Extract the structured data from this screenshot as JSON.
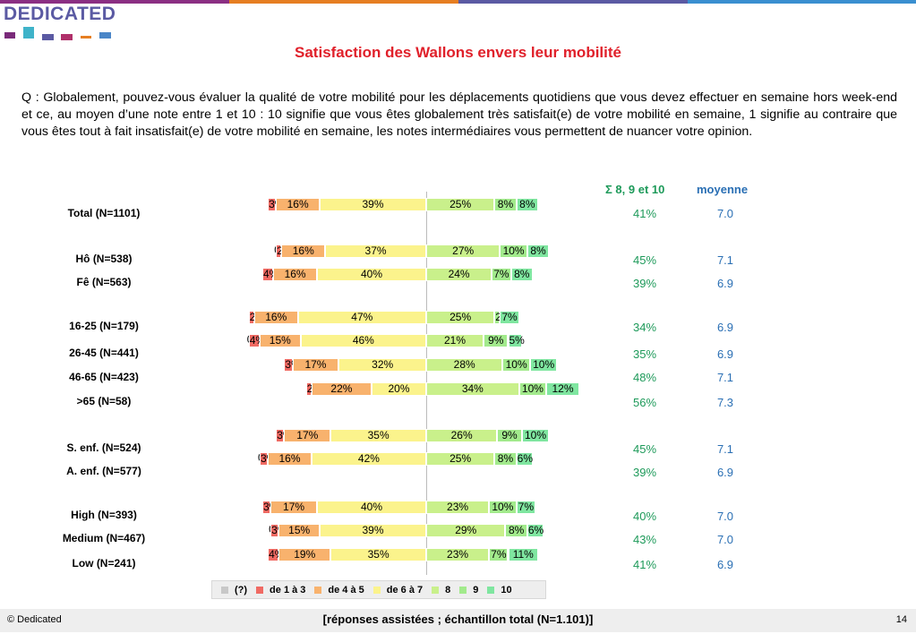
{
  "logo": "DEDICATED",
  "chart_data": {
    "type": "bar",
    "title": "Satisfaction des Wallons envers leur mobilité",
    "question": "Q : Globalement, pouvez-vous évaluer la qualité de votre mobilité pour les déplacements quotidiens que vous devez effectuer en semaine hors week-end et ce, au moyen d’une note entre 1 et 10 : 10 signifie que vous êtes globalement très satisfait(e) de votre mobilité en semaine, 1 signifie au contraire que vous êtes tout à fait insatisfait(e) de votre mobilité en semaine, les notes intermédiaires vous permettent de nuancer votre opinion.",
    "sum_header": "Σ 8, 9 et 10",
    "mean_header": "moyenne",
    "categories": [
      "(?)",
      "de 1 à 3",
      "de 4 à 5",
      "de 6 à 7",
      "8",
      "9",
      "10"
    ],
    "colors": [
      "#c8c8c8",
      "#f06a63",
      "#f8b26d",
      "#fbf38c",
      "#c9f08b",
      "#a2ea8c",
      "#7fe6a0"
    ],
    "rows": [
      {
        "label": "Total (N=1101)",
        "segments": [
          {
            "v": 0,
            "t": ""
          },
          {
            "v": 3,
            "t": "3%"
          },
          {
            "v": 16,
            "t": "16%"
          },
          {
            "v": 39,
            "t": "39%"
          },
          {
            "v": 25,
            "t": "25%"
          },
          {
            "v": 8,
            "t": "8%"
          },
          {
            "v": 8,
            "t": "8%"
          }
        ],
        "sum": "41%",
        "mean": "7.0"
      },
      {
        "label": "Hô (N=538)",
        "segments": [
          {
            "v": 0,
            "t": "0%"
          },
          {
            "v": 2,
            "t": "2%"
          },
          {
            "v": 16,
            "t": "16%"
          },
          {
            "v": 37,
            "t": "37%"
          },
          {
            "v": 27,
            "t": "27%"
          },
          {
            "v": 10,
            "t": "10%"
          },
          {
            "v": 8,
            "t": "8%"
          }
        ],
        "sum": "45%",
        "mean": "7.1"
      },
      {
        "label": "Fê (N=563)",
        "segments": [
          {
            "v": 0,
            "t": ""
          },
          {
            "v": 4,
            "t": "4%"
          },
          {
            "v": 16,
            "t": "16%"
          },
          {
            "v": 40,
            "t": "40%"
          },
          {
            "v": 24,
            "t": "24%"
          },
          {
            "v": 7,
            "t": "7%"
          },
          {
            "v": 8,
            "t": "8%"
          }
        ],
        "sum": "39%",
        "mean": "6.9"
      },
      {
        "label": "16-25 (N=179)",
        "segments": [
          {
            "v": 0,
            "t": ""
          },
          {
            "v": 2,
            "t": "2%"
          },
          {
            "v": 16,
            "t": "16%"
          },
          {
            "v": 47,
            "t": "47%"
          },
          {
            "v": 25,
            "t": "25%"
          },
          {
            "v": 2,
            "t": "2%"
          },
          {
            "v": 7,
            "t": "7%"
          }
        ],
        "sum": "34%",
        "mean": "6.9"
      },
      {
        "label": "26-45 (N=441)",
        "segments": [
          {
            "v": 0,
            "t": "0%"
          },
          {
            "v": 4,
            "t": "4%"
          },
          {
            "v": 15,
            "t": "15%"
          },
          {
            "v": 46,
            "t": "46%"
          },
          {
            "v": 21,
            "t": "21%"
          },
          {
            "v": 9,
            "t": "9%"
          },
          {
            "v": 5,
            "t": "5%"
          }
        ],
        "sum": "35%",
        "mean": "6.9"
      },
      {
        "label": "46-65 (N=423)",
        "segments": [
          {
            "v": 0,
            "t": ""
          },
          {
            "v": 3,
            "t": "3%"
          },
          {
            "v": 17,
            "t": "17%"
          },
          {
            "v": 32,
            "t": "32%"
          },
          {
            "v": 28,
            "t": "28%"
          },
          {
            "v": 10,
            "t": "10%"
          },
          {
            "v": 10,
            "t": "10%"
          }
        ],
        "sum": "48%",
        "mean": "7.1"
      },
      {
        "label": ">65 (N=58)",
        "segments": [
          {
            "v": 0,
            "t": ""
          },
          {
            "v": 2,
            "t": "2%"
          },
          {
            "v": 22,
            "t": "22%"
          },
          {
            "v": 20,
            "t": "20%"
          },
          {
            "v": 34,
            "t": "34%"
          },
          {
            "v": 10,
            "t": "10%"
          },
          {
            "v": 12,
            "t": "12%"
          }
        ],
        "sum": "56%",
        "mean": "7.3"
      },
      {
        "label": "S. enf. (N=524)",
        "segments": [
          {
            "v": 0,
            "t": ""
          },
          {
            "v": 3,
            "t": "3%"
          },
          {
            "v": 17,
            "t": "17%"
          },
          {
            "v": 35,
            "t": "35%"
          },
          {
            "v": 26,
            "t": "26%"
          },
          {
            "v": 9,
            "t": "9%"
          },
          {
            "v": 10,
            "t": "10%"
          }
        ],
        "sum": "45%",
        "mean": "7.1"
      },
      {
        "label": "A. enf. (N=577)",
        "segments": [
          {
            "v": 0,
            "t": "0%"
          },
          {
            "v": 3,
            "t": "3%"
          },
          {
            "v": 16,
            "t": "16%"
          },
          {
            "v": 42,
            "t": "42%"
          },
          {
            "v": 25,
            "t": "25%"
          },
          {
            "v": 8,
            "t": "8%"
          },
          {
            "v": 6,
            "t": "6%"
          }
        ],
        "sum": "39%",
        "mean": "6.9"
      },
      {
        "label": "High (N=393)",
        "segments": [
          {
            "v": 0,
            "t": ""
          },
          {
            "v": 3,
            "t": "3%"
          },
          {
            "v": 17,
            "t": "17%"
          },
          {
            "v": 40,
            "t": "40%"
          },
          {
            "v": 23,
            "t": "23%"
          },
          {
            "v": 10,
            "t": "10%"
          },
          {
            "v": 7,
            "t": "7%"
          }
        ],
        "sum": "40%",
        "mean": "7.0"
      },
      {
        "label": "Medium (N=467)",
        "segments": [
          {
            "v": 0,
            "t": "0%"
          },
          {
            "v": 3,
            "t": "3%"
          },
          {
            "v": 15,
            "t": "15%"
          },
          {
            "v": 39,
            "t": "39%"
          },
          {
            "v": 29,
            "t": "29%"
          },
          {
            "v": 8,
            "t": "8%"
          },
          {
            "v": 6,
            "t": "6%"
          }
        ],
        "sum": "43%",
        "mean": "7.0"
      },
      {
        "label": "Low (N=241)",
        "segments": [
          {
            "v": 0,
            "t": ""
          },
          {
            "v": 4,
            "t": "4%"
          },
          {
            "v": 19,
            "t": "19%"
          },
          {
            "v": 35,
            "t": "35%"
          },
          {
            "v": 23,
            "t": "23%"
          },
          {
            "v": 7,
            "t": "7%"
          },
          {
            "v": 11,
            "t": "11%"
          }
        ],
        "sum": "41%",
        "mean": "6.9"
      }
    ]
  },
  "footer": {
    "left": "© Dedicated",
    "center": "[réponses assistées ; échantillon total (N=1.101)]",
    "page": "14"
  }
}
